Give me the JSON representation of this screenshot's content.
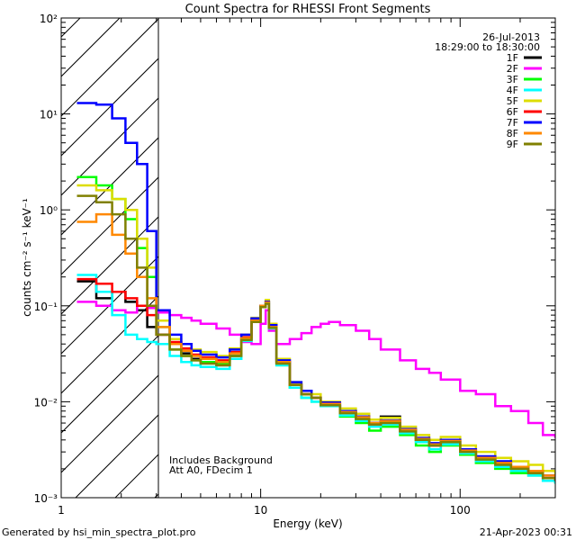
{
  "footer": {
    "generated_by": "Generated by hsi_min_spectra_plot.pro",
    "timestamp": "21-Apr-2023 00:31"
  },
  "annotations": {
    "date": "26-Jul-2013",
    "time_range": "18:29:00 to 18:30:00",
    "note_line1": "Includes Background",
    "note_line2": "Att A0, FDecim 1"
  },
  "chart_data": {
    "type": "line",
    "title": "Count Spectra for RHESSI Front Segments",
    "xlabel": "Energy (keV)",
    "ylabel": "counts cm⁻² s⁻¹ keV⁻¹",
    "xscale": "log",
    "yscale": "log",
    "xlim": [
      1,
      300
    ],
    "ylim": [
      0.001,
      100
    ],
    "x_ticks": [
      {
        "value": 1,
        "label": "1"
      },
      {
        "value": 10,
        "label": "10"
      },
      {
        "value": 100,
        "label": "100"
      }
    ],
    "y_ticks": [
      {
        "value": 0.001,
        "label": "10⁻³"
      },
      {
        "value": 0.01,
        "label": "10⁻²"
      },
      {
        "value": 0.1,
        "label": "10⁻¹"
      },
      {
        "value": 1,
        "label": "10⁰"
      },
      {
        "value": 10,
        "label": "10¹"
      },
      {
        "value": 100,
        "label": "10²"
      }
    ],
    "shaded_region": {
      "x_min": 1,
      "x_max": 3,
      "style": "hatched"
    },
    "series": [
      {
        "name": "1F",
        "color": "#000000",
        "x": [
          1.2,
          1.5,
          1.8,
          2.1,
          2.4,
          2.7,
          3,
          3.5,
          4,
          4.5,
          5,
          6,
          7,
          8,
          9,
          10,
          10.6,
          11,
          12,
          14,
          16,
          18,
          20,
          25,
          30,
          35,
          40,
          50,
          60,
          70,
          80,
          100,
          120,
          150,
          180,
          220,
          260,
          300
        ],
        "y": [
          0.18,
          0.12,
          0.14,
          0.11,
          0.09,
          0.06,
          0.05,
          0.04,
          0.032,
          0.028,
          0.026,
          0.024,
          0.03,
          0.045,
          0.07,
          0.1,
          0.11,
          0.06,
          0.025,
          0.015,
          0.012,
          0.011,
          0.009,
          0.008,
          0.007,
          0.006,
          0.007,
          0.005,
          0.004,
          0.0035,
          0.004,
          0.003,
          0.0025,
          0.0022,
          0.002,
          0.0018,
          0.0016,
          0.0015
        ]
      },
      {
        "name": "2F",
        "color": "#ff00ff",
        "x": [
          1.2,
          1.5,
          1.8,
          2.1,
          2.4,
          2.7,
          3,
          3.5,
          4,
          4.5,
          5,
          6,
          7,
          8,
          9,
          10,
          10.6,
          11,
          12,
          14,
          16,
          18,
          20,
          22,
          25,
          30,
          35,
          40,
          50,
          60,
          70,
          80,
          100,
          120,
          150,
          180,
          220,
          260,
          300
        ],
        "y": [
          0.11,
          0.1,
          0.09,
          0.085,
          0.1,
          0.095,
          0.085,
          0.08,
          0.075,
          0.07,
          0.065,
          0.058,
          0.05,
          0.042,
          0.04,
          0.065,
          0.09,
          0.055,
          0.04,
          0.045,
          0.052,
          0.06,
          0.065,
          0.068,
          0.063,
          0.055,
          0.045,
          0.035,
          0.027,
          0.022,
          0.02,
          0.017,
          0.013,
          0.012,
          0.009,
          0.008,
          0.006,
          0.0045,
          0.0042
        ]
      },
      {
        "name": "3F",
        "color": "#00ff00",
        "x": [
          1.2,
          1.5,
          1.8,
          2.1,
          2.4,
          2.7,
          3,
          3.5,
          4,
          4.5,
          5,
          6,
          7,
          8,
          9,
          10,
          10.6,
          11,
          12,
          14,
          16,
          18,
          20,
          25,
          30,
          35,
          40,
          50,
          60,
          70,
          80,
          100,
          120,
          150,
          180,
          220,
          260,
          300
        ],
        "y": [
          2.2,
          1.8,
          1.3,
          0.8,
          0.4,
          0.2,
          0.06,
          0.035,
          0.03,
          0.027,
          0.026,
          0.025,
          0.03,
          0.045,
          0.07,
          0.1,
          0.11,
          0.06,
          0.024,
          0.014,
          0.011,
          0.01,
          0.009,
          0.007,
          0.006,
          0.005,
          0.0055,
          0.0045,
          0.0035,
          0.003,
          0.0035,
          0.0028,
          0.0023,
          0.002,
          0.0018,
          0.0017,
          0.0015,
          0.0014
        ]
      },
      {
        "name": "4F",
        "color": "#00ffff",
        "x": [
          1.2,
          1.5,
          1.8,
          2.1,
          2.4,
          2.7,
          3,
          3.5,
          4,
          4.5,
          5,
          6,
          7,
          8,
          9,
          10,
          10.6,
          11,
          12,
          14,
          16,
          18,
          20,
          25,
          30,
          35,
          40,
          50,
          60,
          70,
          80,
          100,
          120,
          150,
          180,
          220,
          260,
          300
        ],
        "y": [
          0.21,
          0.14,
          0.08,
          0.05,
          0.045,
          0.042,
          0.04,
          0.03,
          0.026,
          0.024,
          0.023,
          0.022,
          0.028,
          0.043,
          0.068,
          0.098,
          0.105,
          0.058,
          0.024,
          0.014,
          0.011,
          0.01,
          0.009,
          0.0072,
          0.0063,
          0.0055,
          0.0058,
          0.0047,
          0.0038,
          0.0032,
          0.0036,
          0.0029,
          0.0024,
          0.0021,
          0.0019,
          0.0017,
          0.0015,
          0.0014
        ]
      },
      {
        "name": "5F",
        "color": "#dddd00",
        "x": [
          1.2,
          1.5,
          1.8,
          2.1,
          2.4,
          2.7,
          3,
          3.5,
          4,
          4.5,
          5,
          6,
          7,
          8,
          9,
          10,
          10.6,
          11,
          12,
          14,
          16,
          18,
          20,
          25,
          30,
          35,
          40,
          50,
          60,
          70,
          80,
          100,
          120,
          150,
          180,
          220,
          260,
          300
        ],
        "y": [
          1.8,
          1.6,
          1.3,
          1.0,
          0.5,
          0.25,
          0.07,
          0.045,
          0.04,
          0.035,
          0.033,
          0.03,
          0.036,
          0.05,
          0.075,
          0.1,
          0.115,
          0.065,
          0.028,
          0.016,
          0.013,
          0.012,
          0.01,
          0.0085,
          0.0075,
          0.0065,
          0.0068,
          0.0055,
          0.0045,
          0.004,
          0.0043,
          0.0035,
          0.003,
          0.0026,
          0.0024,
          0.0022,
          0.0019,
          0.0017
        ]
      },
      {
        "name": "6F",
        "color": "#ff0000",
        "x": [
          1.2,
          1.5,
          1.8,
          2.1,
          2.4,
          2.7,
          3,
          3.5,
          4,
          4.5,
          5,
          6,
          7,
          8,
          9,
          10,
          10.6,
          11,
          12,
          14,
          16,
          18,
          20,
          25,
          30,
          35,
          40,
          50,
          60,
          70,
          80,
          100,
          120,
          150,
          180,
          220,
          260,
          300
        ],
        "y": [
          0.19,
          0.17,
          0.14,
          0.12,
          0.1,
          0.08,
          0.05,
          0.042,
          0.036,
          0.031,
          0.029,
          0.027,
          0.033,
          0.047,
          0.072,
          0.1,
          0.11,
          0.062,
          0.026,
          0.015,
          0.012,
          0.011,
          0.0095,
          0.0078,
          0.0068,
          0.0058,
          0.0062,
          0.005,
          0.004,
          0.0035,
          0.0039,
          0.0031,
          0.0026,
          0.0023,
          0.0021,
          0.0019,
          0.0017,
          0.0015
        ]
      },
      {
        "name": "7F",
        "color": "#0000ff",
        "x": [
          1.2,
          1.5,
          1.8,
          2.1,
          2.4,
          2.7,
          3,
          3.5,
          4,
          4.5,
          5,
          6,
          7,
          8,
          9,
          10,
          10.6,
          11,
          12,
          14,
          16,
          18,
          20,
          25,
          30,
          35,
          40,
          50,
          60,
          70,
          80,
          100,
          120,
          150,
          180,
          220,
          260,
          300
        ],
        "y": [
          13,
          12.5,
          9,
          5,
          3,
          0.6,
          0.09,
          0.05,
          0.04,
          0.034,
          0.031,
          0.029,
          0.035,
          0.05,
          0.074,
          0.1,
          0.11,
          0.063,
          0.027,
          0.016,
          0.013,
          0.011,
          0.0098,
          0.008,
          0.007,
          0.006,
          0.0064,
          0.0052,
          0.0042,
          0.0037,
          0.004,
          0.0032,
          0.0027,
          0.0024,
          0.0021,
          0.0019,
          0.0017,
          0.0015
        ]
      },
      {
        "name": "8F",
        "color": "#ff8800",
        "x": [
          1.2,
          1.5,
          1.8,
          2.1,
          2.4,
          2.7,
          3,
          3.5,
          4,
          4.5,
          5,
          6,
          7,
          8,
          9,
          10,
          10.6,
          11,
          12,
          14,
          16,
          18,
          20,
          25,
          30,
          35,
          40,
          50,
          60,
          70,
          80,
          100,
          120,
          150,
          180,
          220,
          260,
          300
        ],
        "y": [
          0.75,
          0.9,
          0.55,
          0.35,
          0.2,
          0.12,
          0.06,
          0.04,
          0.034,
          0.03,
          0.028,
          0.026,
          0.032,
          0.046,
          0.07,
          0.1,
          0.108,
          0.06,
          0.026,
          0.015,
          0.012,
          0.011,
          0.0095,
          0.0078,
          0.0069,
          0.006,
          0.0063,
          0.0051,
          0.0041,
          0.0036,
          0.0039,
          0.0031,
          0.0026,
          0.0023,
          0.0021,
          0.0019,
          0.0017,
          0.0015
        ]
      },
      {
        "name": "9F",
        "color": "#808000",
        "x": [
          1.2,
          1.5,
          1.8,
          2.1,
          2.4,
          2.7,
          3,
          3.5,
          4,
          4.5,
          5,
          6,
          7,
          8,
          9,
          10,
          10.6,
          11,
          12,
          14,
          16,
          18,
          20,
          25,
          30,
          35,
          40,
          50,
          60,
          70,
          80,
          100,
          120,
          150,
          180,
          220,
          260,
          300
        ],
        "y": [
          1.4,
          1.2,
          0.9,
          0.5,
          0.25,
          0.1,
          0.05,
          0.035,
          0.03,
          0.027,
          0.025,
          0.024,
          0.03,
          0.044,
          0.068,
          0.097,
          0.105,
          0.059,
          0.025,
          0.015,
          0.012,
          0.011,
          0.0092,
          0.0076,
          0.0066,
          0.0058,
          0.006,
          0.0049,
          0.004,
          0.0035,
          0.0038,
          0.003,
          0.0025,
          0.0022,
          0.002,
          0.0018,
          0.0016,
          0.0015
        ]
      }
    ]
  }
}
